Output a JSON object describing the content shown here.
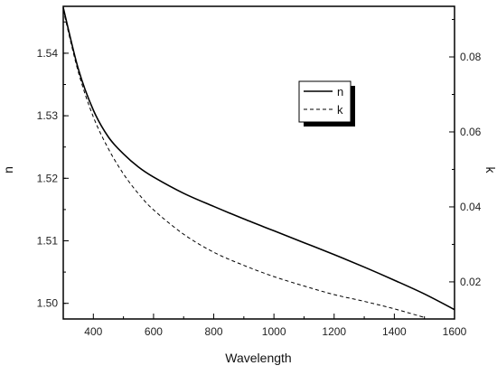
{
  "chart_data": {
    "type": "line",
    "xlabel": "Wavelength",
    "ylabel_left": "n",
    "ylabel_right": "k",
    "xlim": [
      300,
      1600
    ],
    "ylim_left": [
      1.4975,
      1.5475
    ],
    "ylim_right": [
      0.0101,
      0.0935
    ],
    "x_ticks": [
      400,
      600,
      800,
      1000,
      1200,
      1400,
      1600
    ],
    "y_left_ticks": [
      1.5,
      1.51,
      1.52,
      1.53,
      1.54
    ],
    "y_left_tick_labels": [
      "1.50",
      "1.51",
      "1.52",
      "1.53",
      "1.54"
    ],
    "y_right_ticks": [
      0.02,
      0.04,
      0.06,
      0.08
    ],
    "y_right_tick_labels": [
      "0.02",
      "0.04",
      "0.06",
      "0.08"
    ],
    "grid": false,
    "legend": {
      "position": "top-right-inset",
      "shadow": true
    },
    "series": [
      {
        "name": "n",
        "axis": "left",
        "style": "solid",
        "color": "#000000",
        "x": [
          300,
          350,
          400,
          450,
          500,
          550,
          600,
          700,
          800,
          900,
          1000,
          1100,
          1200,
          1300,
          1400,
          1500,
          1600
        ],
        "y": [
          1.5473,
          1.5375,
          1.5309,
          1.5266,
          1.5239,
          1.5218,
          1.5202,
          1.5176,
          1.5155,
          1.5135,
          1.5116,
          1.5097,
          1.5078,
          1.5058,
          1.5037,
          1.5015,
          1.499
        ]
      },
      {
        "name": "k",
        "axis": "right",
        "style": "dashed",
        "color": "#000000",
        "x": [
          300,
          350,
          400,
          450,
          500,
          550,
          600,
          700,
          800,
          900,
          1000,
          1100,
          1200,
          1300,
          1400,
          1500
        ],
        "y": [
          0.0925,
          0.076,
          0.064,
          0.0555,
          0.0488,
          0.0435,
          0.0392,
          0.0327,
          0.0279,
          0.0244,
          0.0214,
          0.0189,
          0.0166,
          0.0148,
          0.0128,
          0.0105
        ]
      }
    ]
  }
}
